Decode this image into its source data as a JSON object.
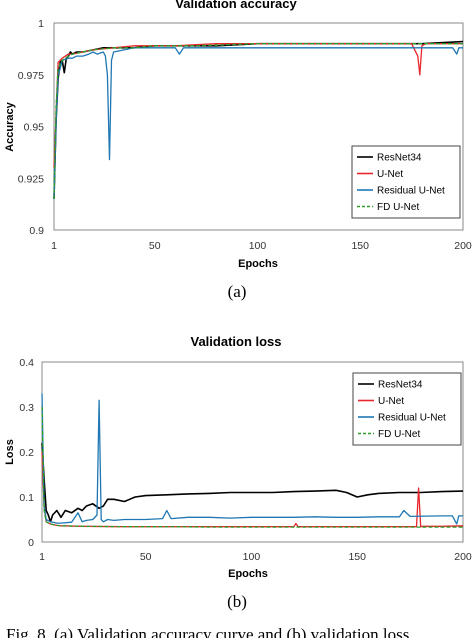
{
  "figure": {
    "sub_label_a": "(a)",
    "sub_label_b": "(b)",
    "caption": "Fig. 8. (a) Validation accuracy curve and (b) validation loss"
  },
  "colors": {
    "ResNet34": "#000000",
    "U-Net": "#e8262c",
    "Residual U-Net": "#1f77b4",
    "FD U-Net": "#2aa02a"
  },
  "chart_data": [
    {
      "type": "line",
      "title": "Validation accuracy",
      "xlabel": "Epochs",
      "ylabel": "Accuracy",
      "xlim": [
        1,
        200
      ],
      "ylim": [
        0.9,
        1.0
      ],
      "xticks": [
        1,
        50,
        100,
        150,
        200
      ],
      "xtick_labels": [
        "1",
        "50",
        "100",
        "150",
        "200"
      ],
      "yticks": [
        0.9,
        0.925,
        0.95,
        0.975,
        1.0
      ],
      "ytick_labels": [
        "0.9",
        "0.925",
        "0.95",
        "0.975",
        "1"
      ],
      "grid": false,
      "legend_position": "bottom-right",
      "series": [
        {
          "name": "ResNet34",
          "color": "#000000",
          "dash": "solid",
          "x": [
            1,
            2,
            3,
            4,
            5,
            6,
            7,
            8,
            9,
            10,
            12,
            15,
            20,
            25,
            30,
            35,
            40,
            50,
            60,
            70,
            80,
            100,
            120,
            140,
            160,
            180,
            200
          ],
          "y": [
            0.915,
            0.953,
            0.973,
            0.981,
            0.982,
            0.976,
            0.983,
            0.984,
            0.986,
            0.985,
            0.986,
            0.986,
            0.987,
            0.988,
            0.988,
            0.988,
            0.988,
            0.989,
            0.989,
            0.989,
            0.989,
            0.99,
            0.99,
            0.99,
            0.99,
            0.99,
            0.991
          ]
        },
        {
          "name": "U-Net",
          "color": "#e8262c",
          "dash": "solid",
          "x": [
            1,
            3,
            5,
            8,
            10,
            15,
            20,
            30,
            40,
            50,
            60,
            80,
            100,
            120,
            140,
            160,
            175,
            178,
            179,
            180,
            182,
            190,
            200
          ],
          "y": [
            0.93,
            0.981,
            0.983,
            0.985,
            0.985,
            0.986,
            0.987,
            0.988,
            0.989,
            0.989,
            0.989,
            0.99,
            0.99,
            0.99,
            0.99,
            0.99,
            0.99,
            0.984,
            0.975,
            0.989,
            0.99,
            0.99,
            0.99
          ]
        },
        {
          "name": "Residual U-Net",
          "color": "#1f77b4",
          "dash": "solid",
          "x": [
            1,
            2,
            3,
            4,
            5,
            8,
            10,
            12,
            15,
            18,
            20,
            22,
            25,
            26,
            27,
            28,
            29,
            30,
            35,
            40,
            50,
            60,
            62,
            64,
            70,
            80,
            100,
            120,
            140,
            160,
            180,
            195,
            197,
            198,
            200
          ],
          "y": [
            0.915,
            0.952,
            0.975,
            0.978,
            0.982,
            0.983,
            0.983,
            0.984,
            0.984,
            0.985,
            0.986,
            0.985,
            0.986,
            0.984,
            0.975,
            0.934,
            0.982,
            0.986,
            0.987,
            0.988,
            0.988,
            0.988,
            0.985,
            0.988,
            0.988,
            0.988,
            0.988,
            0.988,
            0.988,
            0.988,
            0.988,
            0.988,
            0.985,
            0.988,
            0.988
          ]
        },
        {
          "name": "FD U-Net",
          "color": "#2aa02a",
          "dash": "dashed",
          "x": [
            1,
            2,
            3,
            5,
            8,
            10,
            15,
            20,
            30,
            40,
            50,
            70,
            100,
            130,
            160,
            190,
            200
          ],
          "y": [
            0.915,
            0.96,
            0.978,
            0.982,
            0.984,
            0.985,
            0.986,
            0.987,
            0.988,
            0.988,
            0.989,
            0.989,
            0.99,
            0.99,
            0.99,
            0.99,
            0.99
          ]
        }
      ]
    },
    {
      "type": "line",
      "title": "Validation loss",
      "xlabel": "Epochs",
      "ylabel": "Loss",
      "xlim": [
        1,
        200
      ],
      "ylim": [
        0,
        0.4
      ],
      "xticks": [
        1,
        50,
        100,
        150,
        200
      ],
      "xtick_labels": [
        "1",
        "50",
        "100",
        "150",
        "200"
      ],
      "yticks": [
        0,
        0.1,
        0.2,
        0.3,
        0.4
      ],
      "ytick_labels": [
        "0",
        "0.1",
        "0.2",
        "0.3",
        "0.4"
      ],
      "grid": false,
      "legend_position": "top-right",
      "series": [
        {
          "name": "ResNet34",
          "color": "#000000",
          "dash": "solid",
          "x": [
            1,
            2,
            3,
            4,
            5,
            6,
            8,
            10,
            12,
            15,
            18,
            20,
            22,
            25,
            28,
            30,
            32,
            35,
            40,
            45,
            50,
            60,
            70,
            80,
            90,
            100,
            110,
            120,
            130,
            140,
            145,
            150,
            155,
            160,
            170,
            180,
            190,
            200
          ],
          "y": [
            0.22,
            0.14,
            0.07,
            0.06,
            0.045,
            0.06,
            0.07,
            0.055,
            0.07,
            0.065,
            0.075,
            0.07,
            0.08,
            0.085,
            0.075,
            0.08,
            0.095,
            0.095,
            0.09,
            0.1,
            0.103,
            0.105,
            0.107,
            0.108,
            0.11,
            0.11,
            0.11,
            0.112,
            0.113,
            0.115,
            0.11,
            0.1,
            0.105,
            0.108,
            0.11,
            0.11,
            0.112,
            0.113
          ]
        },
        {
          "name": "U-Net",
          "color": "#e8262c",
          "dash": "solid",
          "x": [
            1,
            2,
            3,
            5,
            8,
            10,
            20,
            40,
            60,
            80,
            100,
            120,
            121,
            122,
            130,
            150,
            170,
            178,
            179,
            180,
            181,
            190,
            200
          ],
          "y": [
            0.2,
            0.08,
            0.045,
            0.04,
            0.037,
            0.036,
            0.035,
            0.034,
            0.034,
            0.034,
            0.034,
            0.034,
            0.041,
            0.034,
            0.034,
            0.034,
            0.034,
            0.034,
            0.12,
            0.034,
            0.035,
            0.035,
            0.036
          ]
        },
        {
          "name": "Residual U-Net",
          "color": "#1f77b4",
          "dash": "solid",
          "x": [
            1,
            2,
            3,
            5,
            8,
            10,
            15,
            18,
            20,
            22,
            25,
            27,
            28,
            29,
            30,
            32,
            35,
            40,
            50,
            58,
            60,
            62,
            70,
            80,
            90,
            100,
            110,
            120,
            130,
            140,
            150,
            160,
            170,
            172,
            175,
            190,
            195,
            197,
            198,
            200
          ],
          "y": [
            0.33,
            0.08,
            0.05,
            0.045,
            0.042,
            0.042,
            0.044,
            0.065,
            0.045,
            0.048,
            0.05,
            0.06,
            0.315,
            0.05,
            0.045,
            0.05,
            0.048,
            0.05,
            0.05,
            0.052,
            0.07,
            0.052,
            0.055,
            0.055,
            0.053,
            0.055,
            0.055,
            0.055,
            0.056,
            0.055,
            0.055,
            0.056,
            0.056,
            0.07,
            0.057,
            0.058,
            0.058,
            0.04,
            0.058,
            0.058
          ]
        },
        {
          "name": "FD U-Net",
          "color": "#2aa02a",
          "dash": "dashed",
          "x": [
            1,
            2,
            3,
            5,
            8,
            10,
            20,
            40,
            60,
            80,
            100,
            120,
            140,
            160,
            180,
            200
          ],
          "y": [
            0.3,
            0.07,
            0.045,
            0.04,
            0.037,
            0.036,
            0.035,
            0.034,
            0.034,
            0.033,
            0.033,
            0.033,
            0.033,
            0.033,
            0.033,
            0.033
          ]
        }
      ]
    }
  ]
}
